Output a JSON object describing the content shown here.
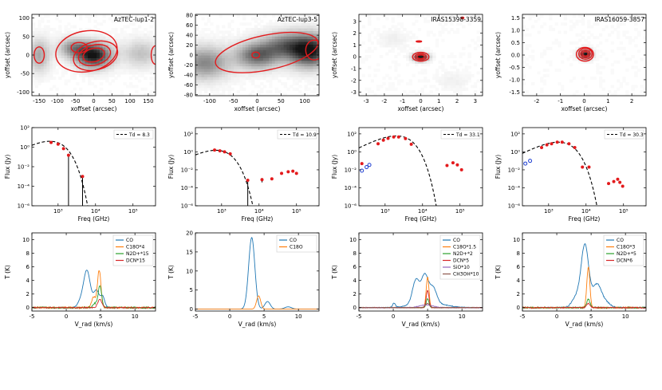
{
  "figure": {
    "rows": [
      "maps",
      "sed",
      "spectra"
    ],
    "columns": 4
  },
  "chart_data": [
    {
      "type": "heatmap",
      "row": 0,
      "col": 0,
      "title": "AzTEC-lup1-2",
      "xlabel": "xoffset (arcsec)",
      "ylabel": "yoffset (arcsec)",
      "xlim": [
        -170,
        170
      ],
      "ylim": [
        -110,
        110
      ],
      "xticks": [
        -150,
        -100,
        -50,
        0,
        50,
        100,
        150
      ],
      "yticks": [
        -100,
        -50,
        0,
        50,
        100
      ],
      "blobs": [
        {
          "x": 0,
          "y": 0,
          "sx": 32,
          "sy": 22,
          "a": 1.0
        },
        {
          "x": -55,
          "y": 20,
          "sx": 28,
          "sy": 18,
          "a": 0.45
        },
        {
          "x": 130,
          "y": 5,
          "sx": 35,
          "sy": 25,
          "a": 0.25
        },
        {
          "x": -150,
          "y": 0,
          "sx": 20,
          "sy": 30,
          "a": 0.35
        }
      ],
      "contours": [
        {
          "x": 0,
          "y": 0,
          "rx": 30,
          "ry": 18,
          "rot": -15
        },
        {
          "x": 2,
          "y": 0,
          "rx": 45,
          "ry": 27,
          "rot": -15
        },
        {
          "x": 5,
          "y": -2,
          "rx": 62,
          "ry": 38,
          "rot": -15
        },
        {
          "x": -40,
          "y": 20,
          "rx": 22,
          "ry": 14,
          "rot": 0
        },
        {
          "x": -20,
          "y": 10,
          "rx": 85,
          "ry": 55,
          "rot": -10
        },
        {
          "x": -150,
          "y": 0,
          "rx": 14,
          "ry": 22,
          "rot": 0
        },
        {
          "x": 170,
          "y": 0,
          "rx": 12,
          "ry": 25,
          "rot": 0
        }
      ]
    },
    {
      "type": "heatmap",
      "row": 0,
      "col": 1,
      "title": "AzTEC-lup3-5",
      "xlabel": "xoffset (arcsec)",
      "ylabel": "yoffset (arcsec)",
      "xlim": [
        -130,
        130
      ],
      "ylim": [
        -82,
        82
      ],
      "xticks": [
        -100,
        -50,
        0,
        50,
        100
      ],
      "yticks": [
        -80,
        -60,
        -40,
        -20,
        0,
        20,
        40,
        60,
        80
      ],
      "blobs": [
        {
          "x": 0,
          "y": 0,
          "sx": 30,
          "sy": 18,
          "a": 0.65
        },
        {
          "x": 110,
          "y": 10,
          "sx": 30,
          "sy": 22,
          "a": 1.0
        },
        {
          "x": -110,
          "y": -15,
          "sx": 35,
          "sy": 22,
          "a": 0.5
        },
        {
          "x": 55,
          "y": 20,
          "sx": 30,
          "sy": 18,
          "a": 0.5
        }
      ],
      "contours": [
        {
          "x": -3,
          "y": 0,
          "rx": 8,
          "ry": 6,
          "rot": 0
        },
        {
          "x": 120,
          "y": 10,
          "rx": 18,
          "ry": 20,
          "rot": 0
        },
        {
          "x": 20,
          "y": 5,
          "rx": 110,
          "ry": 35,
          "rot": -12
        }
      ]
    },
    {
      "type": "heatmap",
      "row": 0,
      "col": 2,
      "title": "IRAS15398-3359",
      "xlabel": "xoffset (arcsec)",
      "ylabel": "yoffset (arcsec)",
      "xlim": [
        -3.4,
        3.4
      ],
      "ylim": [
        -3.3,
        3.6
      ],
      "xticks": [
        -3,
        -2,
        -1,
        0,
        1,
        2,
        3
      ],
      "yticks": [
        -3,
        -2,
        -1,
        0,
        1,
        2,
        3
      ],
      "blobs": [
        {
          "x": 0,
          "y": 0,
          "sx": 0.28,
          "sy": 0.22,
          "a": 1.0
        },
        {
          "x": -1.5,
          "y": 1.5,
          "sx": 0.5,
          "sy": 0.5,
          "a": 0.06
        },
        {
          "x": 1.8,
          "y": -2.0,
          "sx": 0.6,
          "sy": 0.5,
          "a": 0.05
        }
      ],
      "contours": [
        {
          "x": 0,
          "y": 0,
          "rx": 0.2,
          "ry": 0.16,
          "rot": 0
        },
        {
          "x": 0,
          "y": 0,
          "rx": 0.32,
          "ry": 0.26,
          "rot": 0
        },
        {
          "x": 0,
          "y": 0,
          "rx": 0.45,
          "ry": 0.38,
          "rot": 0
        },
        {
          "x": -0.1,
          "y": 1.3,
          "rx": 0.15,
          "ry": 0.05,
          "rot": 0
        },
        {
          "x": 2.3,
          "y": 3.3,
          "rx": 0.07,
          "ry": 0.07,
          "rot": 0
        }
      ]
    },
    {
      "type": "heatmap",
      "row": 0,
      "col": 3,
      "title": "IRAS16059-3857",
      "xlabel": "xoffset (arcsec)",
      "ylabel": "yoffset (arcsec)",
      "xlim": [
        -2.6,
        2.6
      ],
      "ylim": [
        -1.65,
        1.65
      ],
      "xticks": [
        -2,
        -1,
        0,
        1,
        2
      ],
      "yticks": [
        -1.5,
        -1.0,
        -0.5,
        0.0,
        0.5,
        1.0,
        1.5
      ],
      "blobs": [
        {
          "x": 0.05,
          "y": 0.05,
          "sx": 0.18,
          "sy": 0.13,
          "a": 1.0
        }
      ],
      "contours": [
        {
          "x": 0.05,
          "y": 0.05,
          "rx": 0.12,
          "ry": 0.09,
          "rot": 0
        },
        {
          "x": 0.05,
          "y": 0.05,
          "rx": 0.2,
          "ry": 0.15,
          "rot": 0
        },
        {
          "x": 0.05,
          "y": 0.05,
          "rx": 0.28,
          "ry": 0.22,
          "rot": 0
        },
        {
          "x": 0.03,
          "y": 0.03,
          "rx": 0.36,
          "ry": 0.28,
          "rot": 0
        }
      ]
    },
    {
      "type": "scatter",
      "row": 1,
      "col": 0,
      "xlabel": "Freq (GHz)",
      "ylabel": "Flux (Jy)",
      "xscale": "log",
      "yscale": "log",
      "xlim": [
        200,
        400000
      ],
      "ylim": [
        1e-06,
        100
      ],
      "xticks": [
        1000,
        10000,
        100000
      ],
      "xticklabels": [
        "10³",
        "10⁴",
        "10⁵"
      ],
      "yticks": [
        1e-06,
        0.0001,
        0.01,
        1,
        100
      ],
      "yticklabels": [
        "10⁻⁶",
        "10⁻⁴",
        "10⁻²",
        "10⁰",
        "10²"
      ],
      "legend": "Td = 8.3",
      "model": {
        "td": 8.3,
        "peak_x": 600,
        "peak_y": 4
      },
      "points": [
        [
          650,
          3.0
        ],
        [
          1000,
          2.0
        ],
        [
          1400,
          0.7
        ],
        [
          1900,
          0.15
        ],
        [
          4500,
          0.001
        ]
      ],
      "open_points": [],
      "errorbars": [
        [
          1900,
          1e-06,
          0.15
        ],
        [
          4500,
          1e-06,
          0.001
        ]
      ]
    },
    {
      "type": "scatter",
      "row": 1,
      "col": 1,
      "xlabel": "Freq (GHz)",
      "ylabel": "Flux (Jy)",
      "xscale": "log",
      "yscale": "log",
      "xlim": [
        200,
        400000
      ],
      "ylim": [
        1e-06,
        500
      ],
      "xticks": [
        1000,
        10000,
        100000
      ],
      "xticklabels": [
        "10³",
        "10⁴",
        "10⁵"
      ],
      "yticks": [
        1e-06,
        0.0001,
        0.01,
        1,
        100
      ],
      "yticklabels": [
        "10⁻⁶",
        "10⁻⁴",
        "10⁻²",
        "10⁰",
        "10²"
      ],
      "legend": "Td = 10.9",
      "model": {
        "td": 10.9,
        "peak_x": 700,
        "peak_y": 1.5
      },
      "points": [
        [
          650,
          1.6
        ],
        [
          900,
          1.3
        ],
        [
          1200,
          1.0
        ],
        [
          1700,
          0.6
        ],
        [
          5000,
          0.0007
        ],
        [
          12000,
          0.0008
        ],
        [
          22000,
          0.001
        ],
        [
          40000,
          0.004
        ],
        [
          60000,
          0.006
        ],
        [
          80000,
          0.007
        ],
        [
          100000,
          0.004
        ]
      ],
      "open_points": [],
      "errorbars": [
        [
          5000,
          1e-06,
          0.0007
        ],
        [
          12000,
          0.0004,
          0.0012
        ],
        [
          22000,
          0.0007,
          0.0014
        ]
      ]
    },
    {
      "type": "scatter",
      "row": 1,
      "col": 2,
      "xlabel": "Freq (GHz)",
      "ylabel": "Flux (Jy)",
      "xscale": "log",
      "yscale": "log",
      "xlim": [
        200,
        400000
      ],
      "ylim": [
        1e-06,
        500
      ],
      "xticks": [
        1000,
        10000,
        100000
      ],
      "xticklabels": [
        "10³",
        "10⁴",
        "10⁵"
      ],
      "yticks": [
        1e-06,
        0.0001,
        0.01,
        1,
        100
      ],
      "yticklabels": [
        "10⁻⁶",
        "10⁻⁴",
        "10⁻²",
        "10⁰",
        "10²"
      ],
      "legend": "Td = 33.1",
      "model": {
        "td": 33.1,
        "peak_x": 2000,
        "peak_y": 60
      },
      "points": [
        [
          240,
          0.05
        ],
        [
          650,
          8
        ],
        [
          900,
          20
        ],
        [
          1200,
          32
        ],
        [
          1700,
          45
        ],
        [
          2300,
          45
        ],
        [
          3500,
          30
        ],
        [
          5000,
          7
        ],
        [
          45000,
          0.03
        ],
        [
          65000,
          0.06
        ],
        [
          85000,
          0.035
        ],
        [
          110000,
          0.01
        ]
      ],
      "open_points": [
        [
          240,
          0.008
        ],
        [
          320,
          0.02
        ],
        [
          380,
          0.035
        ]
      ],
      "errorbars": []
    },
    {
      "type": "scatter",
      "row": 1,
      "col": 3,
      "xlabel": "Freq (GHz)",
      "ylabel": "Flux (Jy)",
      "xscale": "log",
      "yscale": "log",
      "xlim": [
        200,
        400000
      ],
      "ylim": [
        1e-06,
        500
      ],
      "xticks": [
        1000,
        10000,
        100000
      ],
      "xticklabels": [
        "10³",
        "10⁴",
        "10⁵"
      ],
      "yticks": [
        1e-06,
        0.0001,
        0.01,
        1,
        100
      ],
      "yticklabels": [
        "10⁻⁶",
        "10⁻⁴",
        "10⁻²",
        "10⁰",
        "10²"
      ],
      "legend": "Td = 30.3",
      "model": {
        "td": 30.3,
        "peak_x": 1800,
        "peak_y": 12
      },
      "points": [
        [
          650,
          3
        ],
        [
          900,
          6
        ],
        [
          1200,
          8
        ],
        [
          1700,
          12
        ],
        [
          2300,
          12
        ],
        [
          3500,
          8
        ],
        [
          5000,
          3
        ],
        [
          8000,
          0.02
        ],
        [
          12000,
          0.02
        ],
        [
          40000,
          0.0003
        ],
        [
          55000,
          0.0005
        ],
        [
          70000,
          0.0009
        ],
        [
          80000,
          0.0004
        ],
        [
          95000,
          0.00015
        ]
      ],
      "open_points": [
        [
          240,
          0.05
        ],
        [
          320,
          0.1
        ]
      ],
      "errorbars": []
    },
    {
      "type": "line",
      "row": 2,
      "col": 0,
      "xlabel": "V_rad (km/s)",
      "ylabel": "T (K)",
      "xlim": [
        -5,
        13
      ],
      "ylim": [
        -0.5,
        11
      ],
      "xticks": [
        -5,
        0,
        5,
        10
      ],
      "yticks": [
        0,
        2,
        4,
        6,
        8,
        10
      ],
      "legend": "top-right",
      "series": [
        {
          "name": "CO",
          "color": "#1f77b4",
          "noise": 0.03,
          "bumps": [
            [
              3.0,
              0.5,
              5.5
            ],
            [
              4.4,
              0.4,
              2.5
            ],
            [
              5.3,
              0.3,
              1.6
            ],
            [
              2.0,
              0.4,
              0.7
            ]
          ]
        },
        {
          "name": "C18O*4",
          "color": "#ff7f0e",
          "noise": 0.12,
          "bumps": [
            [
              4.8,
              0.25,
              5.5
            ],
            [
              4.0,
              0.3,
              1.6
            ]
          ]
        },
        {
          "name": "N2D+*15",
          "color": "#2ca02c",
          "noise": 0.12,
          "bumps": [
            [
              4.9,
              0.25,
              3.2
            ],
            [
              4.2,
              0.3,
              0.6
            ]
          ]
        },
        {
          "name": "DCN*15",
          "color": "#d62728",
          "noise": 0.08,
          "bumps": [
            [
              4.9,
              0.3,
              1.2
            ]
          ]
        }
      ]
    },
    {
      "type": "line",
      "row": 2,
      "col": 1,
      "xlabel": "V_rad (km/s)",
      "ylabel": "T (K)",
      "xlim": [
        -5,
        13
      ],
      "ylim": [
        -0.5,
        20
      ],
      "xticks": [
        -5,
        0,
        5,
        10
      ],
      "yticks": [
        0,
        5,
        10,
        15,
        20
      ],
      "legend": "top-right",
      "series": [
        {
          "name": "CO",
          "color": "#1f77b4",
          "noise": 0.0,
          "bumps": [
            [
              3.2,
              0.45,
              18.8
            ],
            [
              5.5,
              0.4,
              2.0
            ],
            [
              8.5,
              0.5,
              0.6
            ]
          ]
        },
        {
          "name": "C18O",
          "color": "#ff7f0e",
          "noise": 0.0,
          "bumps": [
            [
              4.2,
              0.3,
              3.5
            ]
          ]
        }
      ]
    },
    {
      "type": "line",
      "row": 2,
      "col": 2,
      "xlabel": "V_rad (km/s)",
      "ylabel": "T (K)",
      "xlim": [
        -5,
        13
      ],
      "ylim": [
        -0.5,
        11
      ],
      "xticks": [
        -5,
        0,
        5,
        10
      ],
      "yticks": [
        0,
        2,
        4,
        6,
        8,
        10
      ],
      "legend": "top-right",
      "series": [
        {
          "name": "CO",
          "color": "#1f77b4",
          "noise": 0.05,
          "bumps": [
            [
              4.6,
              0.5,
              4.0
            ],
            [
              3.3,
              0.5,
              3.5
            ],
            [
              5.8,
              0.5,
              2.2
            ],
            [
              5.0,
              2.2,
              0.8
            ],
            [
              0.1,
              0.2,
              0.6
            ]
          ]
        },
        {
          "name": "C18O*1.5",
          "color": "#ff7f0e",
          "noise": 0.05,
          "bumps": [
            [
              5.0,
              0.2,
              4.5
            ]
          ]
        },
        {
          "name": "N2D+*2",
          "color": "#2ca02c",
          "noise": 0.05,
          "bumps": [
            [
              5.0,
              0.2,
              1.3
            ]
          ]
        },
        {
          "name": "DCN*5",
          "color": "#d62728",
          "noise": 0.05,
          "bumps": [
            [
              5.0,
              0.2,
              2.5
            ]
          ]
        },
        {
          "name": "SiO*10",
          "color": "#9467bd",
          "noise": 0.05,
          "bumps": [
            [
              4.8,
              1.0,
              0.4
            ]
          ]
        },
        {
          "name": "CH3OH*10",
          "color": "#8c564b",
          "noise": 0.05,
          "bumps": [
            [
              5.0,
              0.3,
              0.6
            ]
          ]
        }
      ]
    },
    {
      "type": "line",
      "row": 2,
      "col": 3,
      "xlabel": "V_rad (km/s)",
      "ylabel": "T (K)",
      "xlim": [
        -5,
        13
      ],
      "ylim": [
        -0.5,
        11
      ],
      "xticks": [
        -5,
        0,
        5,
        10
      ],
      "yticks": [
        0,
        2,
        4,
        6,
        8,
        10
      ],
      "legend": "top-right",
      "series": [
        {
          "name": "CO",
          "color": "#1f77b4",
          "noise": 0.08,
          "bumps": [
            [
              4.1,
              0.55,
              9.2
            ],
            [
              5.8,
              0.6,
              3.0
            ],
            [
              2.8,
              0.6,
              1.5
            ],
            [
              6.8,
              0.8,
              1.0
            ]
          ]
        },
        {
          "name": "C18O*3",
          "color": "#ff7f0e",
          "noise": 0.1,
          "bumps": [
            [
              4.6,
              0.22,
              6.0
            ]
          ]
        },
        {
          "name": "N2D+*5",
          "color": "#2ca02c",
          "noise": 0.1,
          "bumps": [
            [
              4.6,
              0.25,
              1.2
            ]
          ]
        },
        {
          "name": "DCN*6",
          "color": "#d62728",
          "noise": 0.08,
          "bumps": [
            [
              4.6,
              0.25,
              0.6
            ]
          ]
        }
      ]
    }
  ]
}
